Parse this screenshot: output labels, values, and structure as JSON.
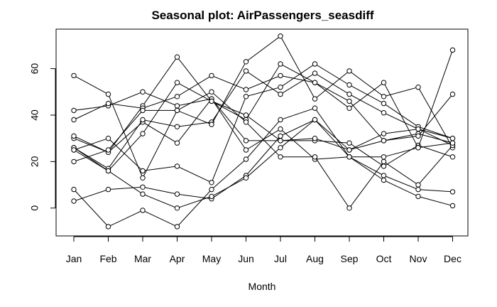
{
  "chart_data": {
    "type": "line",
    "title": "Seasonal plot: AirPassengers_seasdiff",
    "xlabel": "Month",
    "ylabel": "",
    "categories": [
      "Jan",
      "Feb",
      "Mar",
      "Apr",
      "May",
      "Jun",
      "Jul",
      "Aug",
      "Sep",
      "Oct",
      "Nov",
      "Dec"
    ],
    "yticks": [
      0,
      20,
      40,
      60
    ],
    "ylim": [
      -12,
      77
    ],
    "grid": false,
    "legend": "none",
    "marker": "open-circle",
    "line_color": "#000000",
    "series": [
      {
        "values": [
          30,
          24,
          37,
          28,
          47,
          29,
          29,
          29,
          28,
          18,
          27,
          22
        ]
      },
      {
        "values": [
          42,
          44,
          50,
          44,
          47,
          25,
          34,
          21,
          22,
          12,
          5,
          1
        ]
      },
      {
        "values": [
          26,
          17,
          38,
          35,
          37,
          59,
          49,
          58,
          49,
          41,
          34,
          30
        ]
      },
      {
        "values": [
          25,
          30,
          16,
          18,
          11,
          48,
          52,
          62,
          53,
          45,
          35,
          30
        ]
      },
      {
        "values": [
          26,
          16,
          32,
          54,
          46,
          38,
          62,
          54,
          43,
          54,
          26,
          68
        ]
      },
      {
        "values": [
          31,
          24,
          44,
          65,
          46,
          40,
          29,
          30,
          25,
          32,
          34,
          27
        ]
      },
      {
        "values": [
          57,
          49,
          13,
          42,
          36,
          63,
          74,
          47,
          59,
          48,
          52,
          26
        ]
      },
      {
        "values": [
          38,
          45,
          43,
          48,
          57,
          51,
          57,
          54,
          46,
          29,
          32,
          28
        ]
      },
      {
        "values": [
          20,
          25,
          42,
          42,
          50,
          37,
          22,
          22,
          0,
          20,
          10,
          27
        ]
      },
      {
        "values": [
          8,
          -8,
          -1,
          -8,
          8,
          21,
          38,
          43,
          22,
          14,
          8,
          7
        ]
      },
      {
        "values": [
          3,
          8,
          9,
          6,
          4,
          14,
          31,
          38,
          25,
          29,
          31,
          49
        ]
      },
      {
        "values": [
          25,
          16,
          6,
          0,
          5,
          13,
          26,
          38,
          22,
          22,
          26,
          28
        ]
      }
    ]
  }
}
